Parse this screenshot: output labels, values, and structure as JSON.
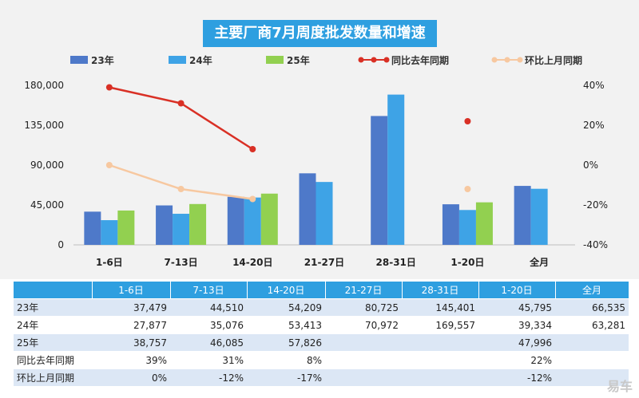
{
  "colors": {
    "s23": "#4e79c9",
    "s24": "#3ea3e6",
    "s25": "#92d050",
    "yoy": "#d93025",
    "mom": "#f7c8a0",
    "header": "#2e9fe0"
  },
  "chart_data": {
    "type": "bar",
    "title": "主要厂商7月周度批发数量和增速",
    "categories": [
      "1-6日",
      "7-13日",
      "14-20日",
      "21-27日",
      "28-31日",
      "1-20日",
      "全月"
    ],
    "y_left": {
      "ticks": [
        "0",
        "45,000",
        "90,000",
        "135,000",
        "180,000"
      ],
      "range": [
        0,
        180000
      ]
    },
    "y_right": {
      "ticks": [
        "-40%",
        "-20%",
        "0%",
        "20%",
        "40%"
      ],
      "range": [
        -40,
        40
      ]
    },
    "series": [
      {
        "name": "23年",
        "type": "bar",
        "color": "#4e79c9",
        "values": [
          37479,
          44510,
          54209,
          80725,
          145401,
          45795,
          66535
        ]
      },
      {
        "name": "24年",
        "type": "bar",
        "color": "#3ea3e6",
        "values": [
          27877,
          35076,
          53413,
          70972,
          169557,
          39334,
          63281
        ]
      },
      {
        "name": "25年",
        "type": "bar",
        "color": "#92d050",
        "values": [
          38757,
          46085,
          57826,
          null,
          null,
          47996,
          null
        ]
      },
      {
        "name": "同比去年同期",
        "type": "line",
        "axis": "right",
        "color": "#d93025",
        "values": [
          39,
          31,
          8,
          null,
          null,
          22,
          null
        ]
      },
      {
        "name": "环比上月同期",
        "type": "line",
        "axis": "right",
        "color": "#f7c8a0",
        "values": [
          0,
          -12,
          -17,
          null,
          null,
          -12,
          null
        ]
      }
    ],
    "legend": "top"
  },
  "table": {
    "header": [
      "",
      "1-6日",
      "7-13日",
      "14-20日",
      "21-27日",
      "28-31日",
      "1-20日",
      "全月"
    ],
    "rows": [
      [
        "23年",
        "37,479",
        "44,510",
        "54,209",
        "80,725",
        "145,401",
        "45,795",
        "66,535"
      ],
      [
        "24年",
        "27,877",
        "35,076",
        "53,413",
        "70,972",
        "169,557",
        "39,334",
        "63,281"
      ],
      [
        "25年",
        "38,757",
        "46,085",
        "57,826",
        "",
        "",
        "47,996",
        ""
      ],
      [
        "同比去年同期",
        "39%",
        "31%",
        "8%",
        "",
        "",
        "22%",
        ""
      ],
      [
        "环比上月同期",
        "0%",
        "-12%",
        "-17%",
        "",
        "",
        "-12%",
        ""
      ]
    ]
  },
  "watermark": "易车"
}
